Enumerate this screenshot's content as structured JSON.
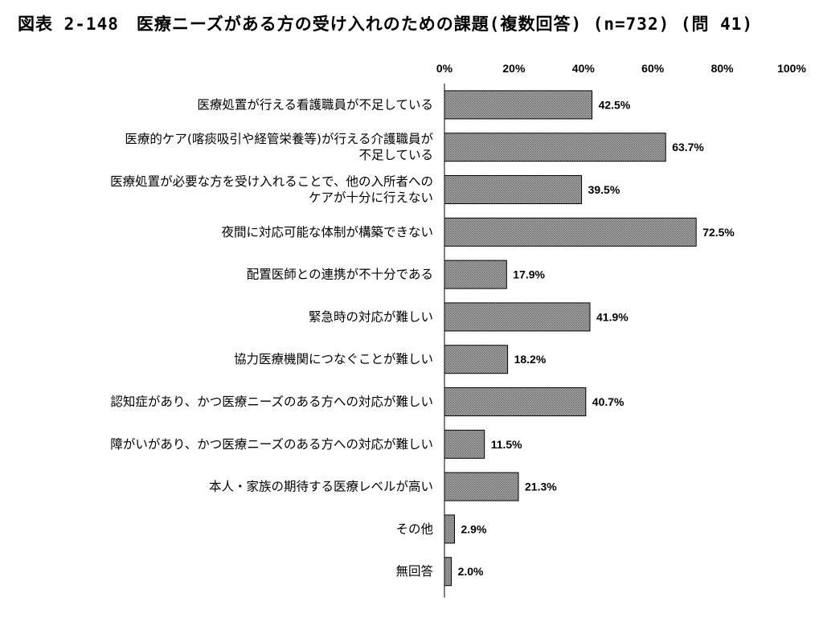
{
  "chart_data": {
    "type": "bar",
    "orientation": "horizontal",
    "title": "図表 2-148　医療ニーズがある方の受け入れのための課題(複数回答) (n=732) (問 41)",
    "xlim": [
      0,
      100
    ],
    "x_ticks": [
      "0%",
      "20%",
      "40%",
      "60%",
      "80%",
      "100%"
    ],
    "x_tick_values": [
      0,
      20,
      40,
      60,
      80,
      100
    ],
    "grid": false,
    "legend": "none",
    "bar_color": "#a8a8a8",
    "categories": [
      [
        "医療処置が行える看護職員が不足している"
      ],
      [
        "医療的ケア(喀痰吸引や経管栄養等)が行える介護職員が",
        "不足している"
      ],
      [
        "医療処置が必要な方を受け入れることで、他の入所者への",
        "ケアが十分に行えない"
      ],
      [
        "夜間に対応可能な体制が構築できない"
      ],
      [
        "配置医師との連携が不十分である"
      ],
      [
        "緊急時の対応が難しい"
      ],
      [
        "協力医療機関につなぐことが難しい"
      ],
      [
        "認知症があり、かつ医療ニーズのある方への対応が難しい"
      ],
      [
        "障がいがあり、かつ医療ニーズのある方への対応が難しい"
      ],
      [
        "本人・家族の期待する医療レベルが高い"
      ],
      [
        "その他"
      ],
      [
        "無回答"
      ]
    ],
    "values": [
      42.5,
      63.7,
      39.5,
      72.5,
      17.9,
      41.9,
      18.2,
      40.7,
      11.5,
      21.3,
      2.9,
      2.0
    ],
    "value_labels": [
      "42.5%",
      "63.7%",
      "39.5%",
      "72.5%",
      "17.9%",
      "41.9%",
      "18.2%",
      "40.7%",
      "11.5%",
      "21.3%",
      "2.9%",
      "2.0%"
    ]
  }
}
